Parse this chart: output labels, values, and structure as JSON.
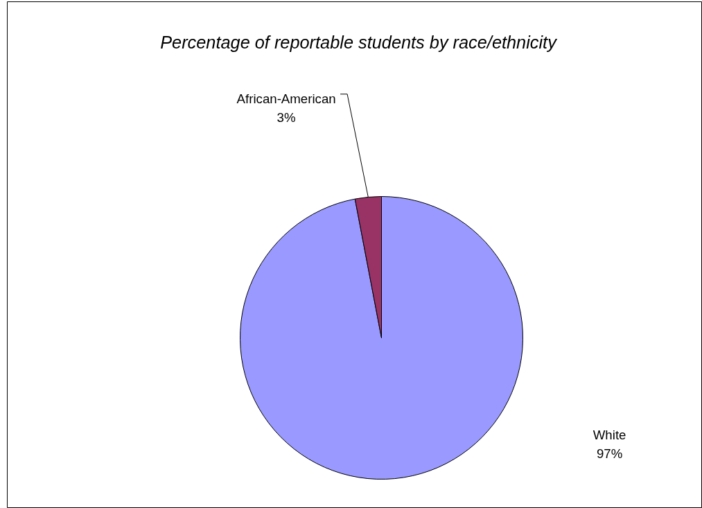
{
  "chart_data": {
    "type": "pie",
    "title": "Percentage of reportable students by race/ethnicity",
    "categories": [
      "White",
      "African-American"
    ],
    "values": [
      97,
      3
    ],
    "value_labels": [
      "97%",
      "3%"
    ],
    "colors": [
      "#9999ff",
      "#993366"
    ]
  }
}
